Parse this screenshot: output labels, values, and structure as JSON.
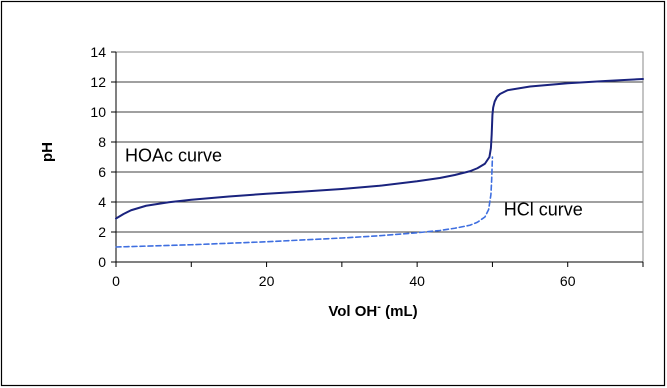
{
  "chart_data": {
    "type": "line",
    "xlabel_main": "Vol OH",
    "xlabel_sup": "-",
    "xlabel_unit": " (mL)",
    "ylabel": "pH",
    "xlim": [
      0,
      70
    ],
    "ylim": [
      0,
      14
    ],
    "x_ticks": [
      0,
      20,
      40,
      60
    ],
    "y_ticks": [
      0,
      2,
      4,
      6,
      8,
      10,
      12,
      14
    ],
    "grid": "horizontal",
    "legend": "none",
    "annotations": [
      {
        "text": "HOAc curve",
        "x": 1.2,
        "y": 6.7
      },
      {
        "text": "HCl curve",
        "x": 51.5,
        "y": 3.1
      }
    ],
    "series": [
      {
        "label": "HOAc curve",
        "color": "#1a237e",
        "style": "solid",
        "x": [
          0,
          1,
          2,
          4,
          7,
          10,
          15,
          20,
          25,
          30,
          35,
          40,
          43,
          45,
          47,
          48,
          49,
          49.6,
          49.8,
          49.9,
          50,
          50.1,
          50.3,
          50.6,
          51,
          52,
          55,
          60,
          65,
          70
        ],
        "y": [
          2.9,
          3.2,
          3.45,
          3.75,
          3.98,
          4.15,
          4.37,
          4.55,
          4.7,
          4.87,
          5.08,
          5.38,
          5.6,
          5.8,
          6.05,
          6.25,
          6.55,
          7.0,
          7.6,
          8.5,
          9.8,
          10.3,
          10.7,
          11.0,
          11.2,
          11.45,
          11.7,
          11.92,
          12.07,
          12.2
        ]
      },
      {
        "label": "HCl curve",
        "color": "#3f6fe0",
        "style": "dashed",
        "x": [
          0,
          10,
          20,
          30,
          35,
          40,
          43,
          45,
          47,
          48,
          49,
          49.5,
          49.8,
          49.9,
          50
        ],
        "y": [
          1.0,
          1.15,
          1.35,
          1.6,
          1.75,
          1.95,
          2.1,
          2.25,
          2.45,
          2.65,
          3.0,
          3.5,
          4.5,
          5.5,
          7.0
        ]
      }
    ]
  }
}
